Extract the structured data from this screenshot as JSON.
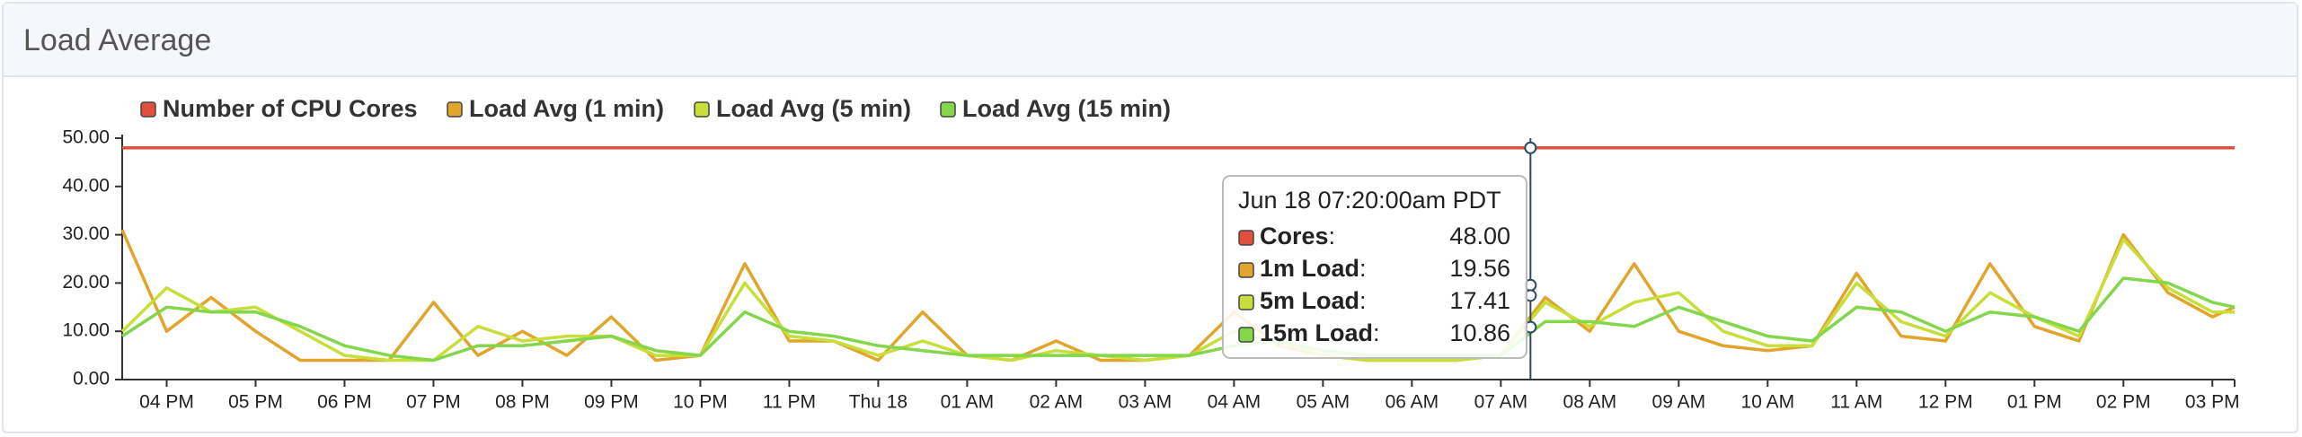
{
  "header": {
    "title": "Load Average"
  },
  "chart_data": {
    "type": "line",
    "x": [
      "Jun 17 15:30",
      "Jun 17 16:00",
      "Jun 17 16:30",
      "Jun 17 17:00",
      "Jun 17 17:30",
      "Jun 17 18:00",
      "Jun 17 18:30",
      "Jun 17 19:00",
      "Jun 17 19:30",
      "Jun 17 20:00",
      "Jun 17 20:30",
      "Jun 17 21:00",
      "Jun 17 21:30",
      "Jun 17 22:00",
      "Jun 17 22:30",
      "Jun 17 23:00",
      "Jun 17 23:30",
      "Jun 18 00:00",
      "Jun 18 00:30",
      "Jun 18 01:00",
      "Jun 18 01:30",
      "Jun 18 02:00",
      "Jun 18 02:30",
      "Jun 18 03:00",
      "Jun 18 03:30",
      "Jun 18 04:00",
      "Jun 18 04:30",
      "Jun 18 05:00",
      "Jun 18 05:30",
      "Jun 18 06:00",
      "Jun 18 06:30",
      "Jun 18 07:00",
      "Jun 18 07:30",
      "Jun 18 08:00",
      "Jun 18 08:30",
      "Jun 18 09:00",
      "Jun 18 09:30",
      "Jun 18 10:00",
      "Jun 18 10:30",
      "Jun 18 11:00",
      "Jun 18 11:30",
      "Jun 18 12:00",
      "Jun 18 12:30",
      "Jun 18 13:00",
      "Jun 18 13:30",
      "Jun 18 14:00",
      "Jun 18 14:30",
      "Jun 18 15:00",
      "Jun 18 15:15"
    ],
    "series": [
      {
        "name": "Number of CPU Cores",
        "color": "#e0503c",
        "values": [
          48,
          48,
          48,
          48,
          48,
          48,
          48,
          48,
          48,
          48,
          48,
          48,
          48,
          48,
          48,
          48,
          48,
          48,
          48,
          48,
          48,
          48,
          48,
          48,
          48,
          48,
          48,
          48,
          48,
          48,
          48,
          48,
          48,
          48,
          48,
          48,
          48,
          48,
          48,
          48,
          48,
          48,
          48,
          48,
          48,
          48,
          48,
          48,
          48
        ]
      },
      {
        "name": "Load Avg (1 min)",
        "color": "#e0a52a",
        "values": [
          31,
          10,
          17,
          10,
          4,
          4,
          4,
          16,
          5,
          10,
          5,
          13,
          4,
          5,
          24,
          8,
          8,
          4,
          14,
          5,
          4,
          8,
          4,
          4,
          5,
          14,
          7,
          5,
          4,
          4,
          4,
          5,
          17,
          10,
          24,
          10,
          7,
          6,
          7,
          22,
          9,
          8,
          24,
          11,
          8,
          30,
          18,
          13,
          15
        ]
      },
      {
        "name": "Load Avg (5 min)",
        "color": "#c8de3a",
        "values": [
          10,
          19,
          14,
          15,
          10,
          5,
          4,
          4,
          11,
          8,
          9,
          9,
          5,
          5,
          20,
          9,
          8,
          5,
          8,
          5,
          4,
          6,
          5,
          4,
          5,
          10,
          8,
          5,
          4,
          4,
          4,
          5,
          16,
          11,
          16,
          18,
          10,
          7,
          7,
          20,
          12,
          9,
          18,
          13,
          9,
          29,
          19,
          14,
          14
        ]
      },
      {
        "name": "Load Avg (15 min)",
        "color": "#84d64a",
        "values": [
          9,
          15,
          14,
          14,
          11,
          7,
          5,
          4,
          7,
          7,
          8,
          9,
          6,
          5,
          14,
          10,
          9,
          7,
          6,
          5,
          5,
          5,
          5,
          5,
          5,
          7,
          8,
          6,
          5,
          5,
          5,
          5,
          12,
          12,
          11,
          15,
          12,
          9,
          8,
          15,
          14,
          10,
          14,
          13,
          10,
          21,
          20,
          16,
          15
        ]
      }
    ],
    "xlim": [
      "Jun 17 15:30",
      "Jun 18 15:15"
    ],
    "xticks": [
      {
        "value": "Jun 17 16:00",
        "label": "04 PM"
      },
      {
        "value": "Jun 17 17:00",
        "label": "05 PM"
      },
      {
        "value": "Jun 17 18:00",
        "label": "06 PM"
      },
      {
        "value": "Jun 17 19:00",
        "label": "07 PM"
      },
      {
        "value": "Jun 17 20:00",
        "label": "08 PM"
      },
      {
        "value": "Jun 17 21:00",
        "label": "09 PM"
      },
      {
        "value": "Jun 17 22:00",
        "label": "10 PM"
      },
      {
        "value": "Jun 17 23:00",
        "label": "11 PM"
      },
      {
        "value": "Jun 18 00:00",
        "label": "Thu 18"
      },
      {
        "value": "Jun 18 01:00",
        "label": "01 AM"
      },
      {
        "value": "Jun 18 02:00",
        "label": "02 AM"
      },
      {
        "value": "Jun 18 03:00",
        "label": "03 AM"
      },
      {
        "value": "Jun 18 04:00",
        "label": "04 AM"
      },
      {
        "value": "Jun 18 05:00",
        "label": "05 AM"
      },
      {
        "value": "Jun 18 06:00",
        "label": "06 AM"
      },
      {
        "value": "Jun 18 07:00",
        "label": "07 AM"
      },
      {
        "value": "Jun 18 08:00",
        "label": "08 AM"
      },
      {
        "value": "Jun 18 09:00",
        "label": "09 AM"
      },
      {
        "value": "Jun 18 10:00",
        "label": "10 AM"
      },
      {
        "value": "Jun 18 11:00",
        "label": "11 AM"
      },
      {
        "value": "Jun 18 12:00",
        "label": "12 PM"
      },
      {
        "value": "Jun 18 13:00",
        "label": "01 PM"
      },
      {
        "value": "Jun 18 14:00",
        "label": "02 PM"
      },
      {
        "value": "Jun 18 15:00",
        "label": "03 PM"
      }
    ],
    "ylim": [
      0,
      50
    ],
    "yticks": [
      {
        "value": 0,
        "label": "0.00"
      },
      {
        "value": 10,
        "label": "10.00"
      },
      {
        "value": 20,
        "label": "20.00"
      },
      {
        "value": 30,
        "label": "30.00"
      },
      {
        "value": 40,
        "label": "40.00"
      },
      {
        "value": 50,
        "label": "50.00"
      }
    ],
    "legend": "top-left",
    "tooltip": {
      "title": "Jun 18 07:20:00am PDT",
      "rows": [
        {
          "label": "Cores",
          "sep": ":",
          "value": "48.00"
        },
        {
          "label": "1m Load",
          "sep": ":",
          "value": "19.56"
        },
        {
          "label": "5m Load",
          "sep": ":",
          "value": "17.41"
        },
        {
          "label": "15m Load",
          "sep": ":",
          "value": "10.86"
        }
      ]
    }
  }
}
